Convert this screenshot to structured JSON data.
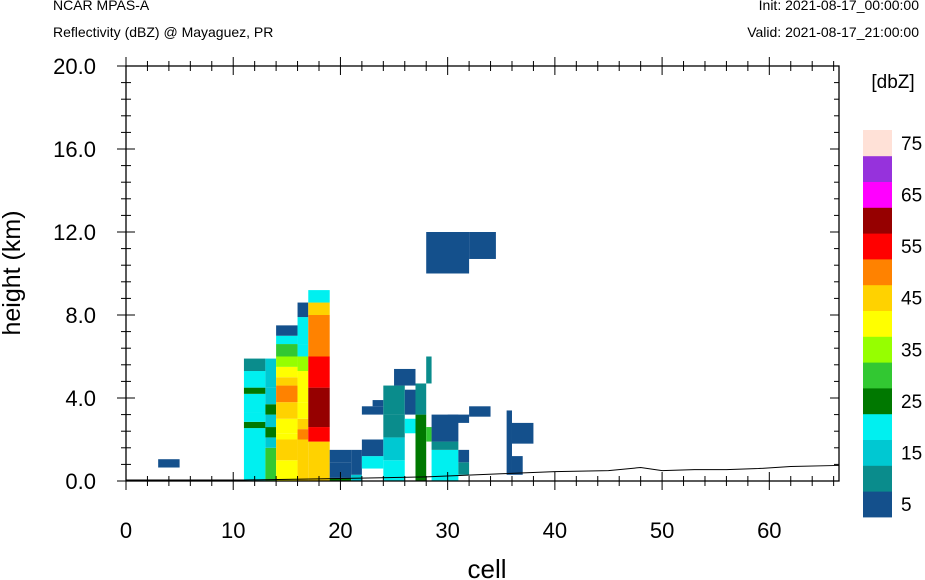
{
  "header": {
    "model": "NCAR MPAS-A",
    "field": "Reflectivity (dBZ) @ Mayaguez, PR",
    "init": "Init: 2021-08-17_00:00:00",
    "valid": "Valid: 2021-08-17_21:00:00"
  },
  "chart_data": {
    "type": "heatmap",
    "xlabel": "cell",
    "ylabel": "height (km)",
    "xlim": [
      0,
      66.5
    ],
    "ylim": [
      0,
      20
    ],
    "xticks": [
      0,
      10,
      20,
      30,
      40,
      50,
      60
    ],
    "xtick_labels": [
      "0",
      "10",
      "20",
      "30",
      "40",
      "50",
      "60"
    ],
    "yticks": [
      0,
      4,
      8,
      12,
      16,
      20
    ],
    "ytick_labels": [
      "0.0",
      "4.0",
      "8.0",
      "12.0",
      "16.0",
      "20.0"
    ],
    "colorbar": {
      "title": "[dbZ]",
      "labels": [
        "5",
        "15",
        "25",
        "35",
        "45",
        "55",
        "65",
        "75"
      ],
      "colors": [
        "#14508c",
        "#0a8c8c",
        "#00c8d2",
        "#00f0f0",
        "#007800",
        "#32c832",
        "#96ff00",
        "#ffff00",
        "#ffd200",
        "#ff8200",
        "#ff0000",
        "#960000",
        "#ff00ff",
        "#9632dc",
        "#ffe1d7"
      ]
    },
    "terrain": [
      [
        0,
        0.05
      ],
      [
        11,
        0.05
      ],
      [
        18,
        0.1
      ],
      [
        28,
        0.2
      ],
      [
        35,
        0.35
      ],
      [
        40,
        0.45
      ],
      [
        45,
        0.5
      ],
      [
        48,
        0.65
      ],
      [
        50,
        0.5
      ],
      [
        53,
        0.55
      ],
      [
        56,
        0.55
      ],
      [
        59,
        0.6
      ],
      [
        62,
        0.7
      ],
      [
        66.5,
        0.75
      ]
    ],
    "cells": [
      [
        3,
        5,
        0.65,
        1.05,
        0
      ],
      [
        11,
        13,
        0,
        2.55,
        3
      ],
      [
        11,
        13,
        2.55,
        2.85,
        4
      ],
      [
        11,
        13,
        2.85,
        3.3,
        3
      ],
      [
        11,
        13,
        3.3,
        4.2,
        3
      ],
      [
        11,
        13,
        4.2,
        4.5,
        4
      ],
      [
        11,
        13,
        4.5,
        5.3,
        3
      ],
      [
        11,
        13,
        5.3,
        5.9,
        1
      ],
      [
        13,
        14,
        0,
        1.6,
        5
      ],
      [
        13,
        14,
        1.6,
        2.1,
        2
      ],
      [
        13,
        14,
        2.1,
        2.6,
        4
      ],
      [
        13,
        14,
        2.6,
        3.2,
        2
      ],
      [
        13,
        14,
        3.2,
        3.7,
        4
      ],
      [
        13,
        14,
        3.7,
        4.5,
        2
      ],
      [
        13,
        14,
        4.5,
        5.9,
        2
      ],
      [
        14,
        16,
        0,
        1.0,
        7
      ],
      [
        14,
        16,
        1.0,
        2.0,
        8
      ],
      [
        14,
        16,
        2.0,
        2.3,
        7
      ],
      [
        14,
        16,
        2.3,
        3.0,
        7
      ],
      [
        14,
        16,
        3.0,
        3.8,
        8
      ],
      [
        14,
        16,
        3.8,
        4.6,
        9
      ],
      [
        14,
        16,
        4.6,
        5.0,
        8
      ],
      [
        14,
        16,
        5.0,
        5.5,
        7
      ],
      [
        14,
        16,
        5.5,
        6.0,
        6
      ],
      [
        14,
        16,
        6.0,
        6.6,
        5
      ],
      [
        14,
        16,
        6.6,
        7.0,
        3
      ],
      [
        14,
        16,
        7.0,
        7.5,
        0
      ],
      [
        16,
        17,
        0,
        2.0,
        8
      ],
      [
        16,
        17,
        2.0,
        2.5,
        9
      ],
      [
        16,
        17,
        2.5,
        3.0,
        8
      ],
      [
        16,
        17,
        3.0,
        3.8,
        7
      ],
      [
        16,
        17,
        3.8,
        5.3,
        7
      ],
      [
        16,
        17,
        5.3,
        6.0,
        6
      ],
      [
        16,
        17,
        6.0,
        6.6,
        3
      ],
      [
        16,
        17,
        6.6,
        7.9,
        3
      ],
      [
        16,
        17,
        7.9,
        8.6,
        0
      ],
      [
        17,
        19,
        0,
        1.9,
        8
      ],
      [
        17,
        19,
        1.9,
        2.6,
        10
      ],
      [
        17,
        19,
        2.6,
        4.5,
        11
      ],
      [
        17,
        19,
        4.5,
        6.0,
        10
      ],
      [
        17,
        19,
        6.0,
        8.0,
        9
      ],
      [
        17,
        19,
        8.0,
        8.6,
        8
      ],
      [
        17,
        19,
        8.6,
        9.2,
        3
      ],
      [
        19,
        21,
        0,
        0.15,
        4
      ],
      [
        19,
        21,
        0.15,
        0.9,
        0
      ],
      [
        19,
        21,
        0.9,
        1.5,
        0
      ],
      [
        21,
        22,
        0,
        0.3,
        2
      ],
      [
        21,
        22,
        0.3,
        1.5,
        0
      ],
      [
        22,
        24,
        0.6,
        1.2,
        3
      ],
      [
        22,
        24,
        1.2,
        2.0,
        0
      ],
      [
        22,
        24,
        3.2,
        3.6,
        0
      ],
      [
        23,
        24,
        3.6,
        3.9,
        0
      ],
      [
        24,
        26,
        0,
        1.0,
        3
      ],
      [
        24,
        26,
        1.0,
        2.1,
        2
      ],
      [
        24,
        26,
        2.1,
        3.2,
        1
      ],
      [
        24,
        26,
        3.2,
        4.6,
        1
      ],
      [
        25,
        27,
        4.6,
        5.4,
        0
      ],
      [
        26,
        27,
        2.3,
        3.0,
        3
      ],
      [
        26,
        27,
        3.2,
        4.4,
        0
      ],
      [
        27,
        28,
        0,
        3.2,
        4
      ],
      [
        27,
        28,
        3.2,
        4.7,
        1
      ],
      [
        28,
        28.5,
        1.9,
        2.6,
        5
      ],
      [
        28,
        28.5,
        4.7,
        6.0,
        1
      ],
      [
        28.5,
        31,
        0,
        1.5,
        3
      ],
      [
        28.5,
        31,
        1.5,
        1.9,
        1
      ],
      [
        28.5,
        31,
        1.9,
        3.2,
        0
      ],
      [
        31,
        32,
        0.3,
        0.9,
        1
      ],
      [
        31,
        32,
        0.9,
        1.5,
        0
      ],
      [
        30,
        32,
        2.8,
        3.2,
        0
      ],
      [
        32,
        34,
        3.1,
        3.6,
        0
      ],
      [
        35.5,
        36,
        0.3,
        3.4,
        0
      ],
      [
        36,
        38,
        1.8,
        2.8,
        0
      ],
      [
        36,
        37,
        0.3,
        1.2,
        0
      ],
      [
        28,
        32,
        10.0,
        12.0,
        0
      ],
      [
        32,
        34.5,
        10.7,
        12.0,
        0
      ]
    ]
  }
}
